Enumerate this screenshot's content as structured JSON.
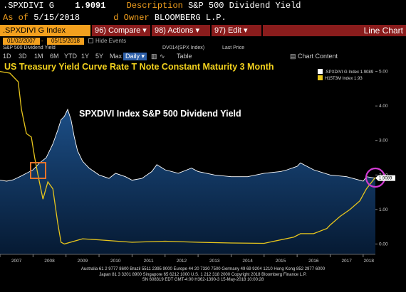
{
  "header": {
    "ticker": ".SPXDIVI G",
    "price": "1.9091",
    "desc_label": "Description",
    "desc_value": "S&P 500 Dividend Yield",
    "asof_label": "As of",
    "asof_value": "5/15/2018",
    "owner_label": "d Owner",
    "owner_value": "BLOOMBERG L.P."
  },
  "toolbar": {
    "security": ".SPXDIVI G Index",
    "compare": "96) Compare",
    "actions": "98) Actions",
    "edit": "97) Edit",
    "view": "Line Chart"
  },
  "range": {
    "start": "01/02/2007",
    "end": "05/15/2018",
    "hide_events": "Hide Events"
  },
  "security_row": {
    "left": "S&P 500 Dividend Yield",
    "mid": "DV014(SPX Index)",
    "last_price": "Last Price"
  },
  "periods": [
    "1D",
    "3D",
    "1M",
    "6M",
    "YTD",
    "1Y",
    "5Y",
    "Max"
  ],
  "period_selected": "Daily",
  "table_label": "Table",
  "chart_content_label": "Chart Content",
  "icons": [
    "checkbox-icon",
    "dropdown-arrow-icon",
    "bar-chart-icon",
    "line-chart-icon",
    "chart-content-icon"
  ],
  "colors": {
    "accent_orange": "#f3a01e",
    "button_red": "#8a1c1c",
    "series_white": "#ffffff",
    "series_yellow": "#e8c61c",
    "plot_bg": "#0b2f55",
    "highlight_square": "#e8742a",
    "highlight_circle": "#d23bd3"
  },
  "footer": {
    "line1": "Australia 61 2 9777 8600 Brazil 5511 2395 9000 Europe 44 20 7330 7500 Germany 49 69 9204 1210 Hong Kong 852 2977 6000",
    "line2": "Japan 81 3 3201 8900 Singapore 65 6212 1000 U.S. 1 212 318 2000 Copyright 2018 Bloomberg Finance L.P.",
    "line3": "SN 608319 EDT GMT-4:00 H362-1390-3 15-May-2018 10:00:28"
  },
  "chart_data": {
    "type": "line",
    "annotations": [
      "US Treasury Yield Curve Rate T Note Constant Maturity 3 Month",
      "SPXDIVI Index  S&P 500 Dividend Yield"
    ],
    "x_tick_labels": [
      "2007",
      "2008",
      "2009",
      "2010",
      "2011",
      "2012",
      "2013",
      "2014",
      "2015",
      "2016",
      "2017",
      "2018"
    ],
    "y_tick_labels": [
      "0.00",
      "1.00",
      "2.00",
      "3.00",
      "4.00",
      "5.00"
    ],
    "xlim": [
      2007.0,
      2018.37
    ],
    "ylim": [
      -0.3,
      5.3
    ],
    "grid": false,
    "legend": {
      "placement": "top-right",
      "entries": [
        {
          "label": ".SPXDIVI G Index",
          "value": "1.9089"
        },
        {
          "label": "H15T3M Index",
          "value": "1.93"
        }
      ]
    },
    "last_value_tag": "1.9089",
    "series": [
      {
        "name": ".SPXDIVI G Index",
        "color": "#ffffff",
        "x": [
          2007.0,
          2007.2,
          2007.4,
          2007.6,
          2007.8,
          2008.0,
          2008.2,
          2008.4,
          2008.6,
          2008.75,
          2008.85,
          2008.95,
          2009.05,
          2009.15,
          2009.25,
          2009.35,
          2009.5,
          2009.7,
          2010.0,
          2010.3,
          2010.5,
          2010.8,
          2011.0,
          2011.3,
          2011.6,
          2011.75,
          2012.0,
          2012.4,
          2012.8,
          2013.0,
          2013.5,
          2014.0,
          2014.5,
          2015.0,
          2015.5,
          2015.7,
          2016.0,
          2016.1,
          2016.5,
          2017.0,
          2017.5,
          2018.0,
          2018.1,
          2018.37
        ],
        "y": [
          1.85,
          1.82,
          1.86,
          1.95,
          2.05,
          2.15,
          2.35,
          2.5,
          2.9,
          3.3,
          3.6,
          3.7,
          3.9,
          3.6,
          3.1,
          2.7,
          2.4,
          2.2,
          2.0,
          1.9,
          2.05,
          1.95,
          1.85,
          1.9,
          2.1,
          2.3,
          2.15,
          2.05,
          2.2,
          2.1,
          2.0,
          1.95,
          1.95,
          2.05,
          2.1,
          2.15,
          2.25,
          2.35,
          2.15,
          2.0,
          1.95,
          1.82,
          1.95,
          1.91
        ]
      },
      {
        "name": "H15T3M Index",
        "color": "#e8c61c",
        "x": [
          2007.0,
          2007.3,
          2007.55,
          2007.65,
          2007.8,
          2007.95,
          2008.05,
          2008.15,
          2008.3,
          2008.45,
          2008.6,
          2008.75,
          2008.85,
          2008.95,
          2009.5,
          2010.0,
          2011.0,
          2012.0,
          2013.0,
          2014.0,
          2015.0,
          2015.9,
          2016.1,
          2016.5,
          2016.9,
          2017.0,
          2017.3,
          2017.6,
          2017.9,
          2018.1,
          2018.37
        ],
        "y": [
          5.0,
          4.95,
          4.7,
          3.9,
          3.2,
          3.1,
          2.5,
          2.0,
          1.3,
          1.8,
          1.6,
          0.6,
          0.05,
          0.0,
          0.15,
          0.12,
          0.05,
          0.08,
          0.05,
          0.03,
          0.02,
          0.2,
          0.3,
          0.3,
          0.45,
          0.55,
          0.8,
          1.0,
          1.25,
          1.6,
          1.93
        ]
      }
    ]
  }
}
